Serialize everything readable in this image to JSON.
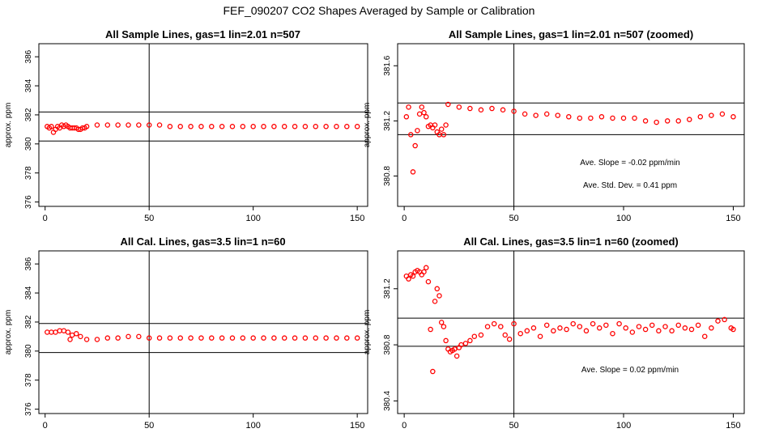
{
  "figure": {
    "title": "FEF_090207  CO2 Shapes Averaged by Sample or Calibration"
  },
  "chart_data": [
    {
      "type": "scatter",
      "title": "All Sample Lines, gas=1 lin=2.01 n=507",
      "xlabel": "",
      "ylabel": "approx. ppm",
      "xlim": [
        -3,
        155
      ],
      "ylim": [
        375.7,
        386.9
      ],
      "xticks": [
        0,
        50,
        100,
        150
      ],
      "yticks": [
        376,
        378,
        380,
        382,
        384,
        386
      ],
      "ytick_labels": [
        "376",
        "378",
        "380",
        "382",
        "384",
        "386"
      ],
      "hlines": [
        380.2,
        382.2
      ],
      "vlines": [
        50
      ],
      "marker_color": "#ff0000",
      "annotations": [],
      "points": "sample_full"
    },
    {
      "type": "scatter",
      "title": "All Sample Lines, gas=1 lin=2.01 n=507 (zoomed)",
      "xlabel": "",
      "ylabel": "approx. ppm",
      "xlim": [
        -3,
        155
      ],
      "ylim": [
        380.58,
        381.76
      ],
      "xticks": [
        0,
        50,
        100,
        150
      ],
      "yticks": [
        380.8,
        381.2,
        381.6
      ],
      "ytick_labels": [
        "380.8",
        "381.2",
        "381.6"
      ],
      "hlines": [
        381.1,
        381.33
      ],
      "vlines": [
        50
      ],
      "marker_color": "#ff0000",
      "annotations": [
        "Ave. Slope =  -0.02  ppm/min",
        "Ave. Std. Dev. =  0.41  ppm"
      ],
      "points": "sample_zoom"
    },
    {
      "type": "scatter",
      "title": "All Cal. Lines, gas=3.5 lin=1 n=60",
      "xlabel": "",
      "ylabel": "approx. ppm",
      "xlim": [
        -3,
        155
      ],
      "ylim": [
        375.7,
        386.9
      ],
      "xticks": [
        0,
        50,
        100,
        150
      ],
      "yticks": [
        376,
        378,
        380,
        382,
        384,
        386
      ],
      "ytick_labels": [
        "376",
        "378",
        "380",
        "382",
        "384",
        "386"
      ],
      "hlines": [
        379.9,
        381.9
      ],
      "vlines": [
        50
      ],
      "marker_color": "#ff0000",
      "annotations": [],
      "points": "cal_full"
    },
    {
      "type": "scatter",
      "title": "All Cal. Lines, gas=3.5 lin=1 n=60 (zoomed)",
      "xlabel": "",
      "ylabel": "approx. ppm",
      "xlim": [
        -3,
        155
      ],
      "ylim": [
        380.31,
        381.47
      ],
      "xticks": [
        0,
        50,
        100,
        150
      ],
      "yticks": [
        380.4,
        380.8,
        381.2
      ],
      "ytick_labels": [
        "380.4",
        "380.8",
        "381.2"
      ],
      "hlines": [
        380.79,
        380.99
      ],
      "vlines": [
        50
      ],
      "marker_color": "#ff0000",
      "annotations": [
        "Ave. Slope =  0.02  ppm/min"
      ],
      "points": "cal_zoom"
    }
  ],
  "series": {
    "sample_full": [
      [
        1,
        381.2
      ],
      [
        2,
        381.1
      ],
      [
        3,
        381.2
      ],
      [
        4,
        380.8
      ],
      [
        5,
        381.0
      ],
      [
        6,
        381.2
      ],
      [
        7,
        381.1
      ],
      [
        8,
        381.3
      ],
      [
        9,
        381.2
      ],
      [
        10,
        381.3
      ],
      [
        11,
        381.2
      ],
      [
        12,
        381.1
      ],
      [
        13,
        381.1
      ],
      [
        14,
        381.1
      ],
      [
        15,
        381.1
      ],
      [
        16,
        381.0
      ],
      [
        17,
        381.0
      ],
      [
        18,
        381.1
      ],
      [
        19,
        381.1
      ],
      [
        20,
        381.2
      ],
      [
        25,
        381.3
      ],
      [
        30,
        381.3
      ],
      [
        35,
        381.3
      ],
      [
        40,
        381.3
      ],
      [
        45,
        381.3
      ],
      [
        50,
        381.3
      ],
      [
        55,
        381.3
      ],
      [
        60,
        381.2
      ],
      [
        65,
        381.2
      ],
      [
        70,
        381.2
      ],
      [
        75,
        381.2
      ],
      [
        80,
        381.2
      ],
      [
        85,
        381.2
      ],
      [
        90,
        381.2
      ],
      [
        95,
        381.2
      ],
      [
        100,
        381.2
      ],
      [
        105,
        381.2
      ],
      [
        110,
        381.2
      ],
      [
        115,
        381.2
      ],
      [
        120,
        381.2
      ],
      [
        125,
        381.2
      ],
      [
        130,
        381.2
      ],
      [
        135,
        381.2
      ],
      [
        140,
        381.2
      ],
      [
        145,
        381.2
      ],
      [
        150,
        381.2
      ]
    ],
    "sample_zoom": [
      [
        1,
        381.23
      ],
      [
        2,
        381.3
      ],
      [
        3,
        381.1
      ],
      [
        4,
        380.83
      ],
      [
        5,
        381.02
      ],
      [
        6,
        381.13
      ],
      [
        7,
        381.25
      ],
      [
        8,
        381.3
      ],
      [
        9,
        381.26
      ],
      [
        10,
        381.23
      ],
      [
        11,
        381.16
      ],
      [
        12,
        381.17
      ],
      [
        13,
        381.15
      ],
      [
        14,
        381.17
      ],
      [
        15,
        381.12
      ],
      [
        16,
        381.1
      ],
      [
        17,
        381.14
      ],
      [
        18,
        381.1
      ],
      [
        19,
        381.17
      ],
      [
        20,
        381.32
      ],
      [
        25,
        381.3
      ],
      [
        30,
        381.29
      ],
      [
        35,
        381.28
      ],
      [
        40,
        381.29
      ],
      [
        45,
        381.28
      ],
      [
        50,
        381.27
      ],
      [
        55,
        381.25
      ],
      [
        60,
        381.24
      ],
      [
        65,
        381.25
      ],
      [
        70,
        381.24
      ],
      [
        75,
        381.23
      ],
      [
        80,
        381.22
      ],
      [
        85,
        381.22
      ],
      [
        90,
        381.23
      ],
      [
        95,
        381.22
      ],
      [
        100,
        381.22
      ],
      [
        105,
        381.22
      ],
      [
        110,
        381.2
      ],
      [
        115,
        381.19
      ],
      [
        120,
        381.2
      ],
      [
        125,
        381.2
      ],
      [
        130,
        381.21
      ],
      [
        135,
        381.23
      ],
      [
        140,
        381.24
      ],
      [
        145,
        381.25
      ],
      [
        150,
        381.23
      ]
    ],
    "cal_full": [
      [
        1,
        381.3
      ],
      [
        3,
        381.3
      ],
      [
        5,
        381.3
      ],
      [
        7,
        381.4
      ],
      [
        9,
        381.4
      ],
      [
        11,
        381.3
      ],
      [
        12,
        380.8
      ],
      [
        13,
        381.1
      ],
      [
        15,
        381.2
      ],
      [
        17,
        381.0
      ],
      [
        20,
        380.8
      ],
      [
        25,
        380.8
      ],
      [
        30,
        380.9
      ],
      [
        35,
        380.9
      ],
      [
        40,
        381.0
      ],
      [
        45,
        381.0
      ],
      [
        50,
        380.9
      ],
      [
        55,
        380.9
      ],
      [
        60,
        380.9
      ],
      [
        65,
        380.9
      ],
      [
        70,
        380.9
      ],
      [
        75,
        380.9
      ],
      [
        80,
        380.9
      ],
      [
        85,
        380.9
      ],
      [
        90,
        380.9
      ],
      [
        95,
        380.9
      ],
      [
        100,
        380.9
      ],
      [
        105,
        380.9
      ],
      [
        110,
        380.9
      ],
      [
        115,
        380.9
      ],
      [
        120,
        380.9
      ],
      [
        125,
        380.9
      ],
      [
        130,
        380.9
      ],
      [
        135,
        380.9
      ],
      [
        140,
        380.9
      ],
      [
        145,
        380.9
      ],
      [
        150,
        380.9
      ]
    ],
    "cal_zoom": [
      [
        1,
        381.29
      ],
      [
        2,
        381.27
      ],
      [
        3,
        381.3
      ],
      [
        4,
        381.29
      ],
      [
        5,
        381.32
      ],
      [
        6,
        381.33
      ],
      [
        7,
        381.32
      ],
      [
        8,
        381.3
      ],
      [
        9,
        381.32
      ],
      [
        10,
        381.35
      ],
      [
        11,
        381.25
      ],
      [
        12,
        380.91
      ],
      [
        13,
        380.61
      ],
      [
        14,
        381.11
      ],
      [
        15,
        381.2
      ],
      [
        16,
        381.15
      ],
      [
        17,
        380.96
      ],
      [
        18,
        380.93
      ],
      [
        19,
        380.83
      ],
      [
        20,
        380.77
      ],
      [
        21,
        380.75
      ],
      [
        22,
        380.76
      ],
      [
        23,
        380.77
      ],
      [
        24,
        380.72
      ],
      [
        25,
        380.78
      ],
      [
        26,
        380.8
      ],
      [
        28,
        380.81
      ],
      [
        30,
        380.83
      ],
      [
        32,
        380.86
      ],
      [
        35,
        380.87
      ],
      [
        38,
        380.93
      ],
      [
        41,
        380.95
      ],
      [
        44,
        380.93
      ],
      [
        46,
        380.87
      ],
      [
        48,
        380.84
      ],
      [
        50,
        380.95
      ],
      [
        53,
        380.88
      ],
      [
        56,
        380.9
      ],
      [
        59,
        380.92
      ],
      [
        62,
        380.86
      ],
      [
        65,
        380.94
      ],
      [
        68,
        380.9
      ],
      [
        71,
        380.92
      ],
      [
        74,
        380.91
      ],
      [
        77,
        380.95
      ],
      [
        80,
        380.93
      ],
      [
        83,
        380.9
      ],
      [
        86,
        380.95
      ],
      [
        89,
        380.92
      ],
      [
        92,
        380.94
      ],
      [
        95,
        380.88
      ],
      [
        98,
        380.95
      ],
      [
        101,
        380.92
      ],
      [
        104,
        380.89
      ],
      [
        107,
        380.93
      ],
      [
        110,
        380.91
      ],
      [
        113,
        380.94
      ],
      [
        116,
        380.9
      ],
      [
        119,
        380.93
      ],
      [
        122,
        380.9
      ],
      [
        125,
        380.94
      ],
      [
        128,
        380.92
      ],
      [
        131,
        380.91
      ],
      [
        134,
        380.94
      ],
      [
        137,
        380.86
      ],
      [
        140,
        380.92
      ],
      [
        143,
        380.97
      ],
      [
        146,
        380.98
      ],
      [
        149,
        380.92
      ],
      [
        150,
        380.91
      ]
    ]
  }
}
